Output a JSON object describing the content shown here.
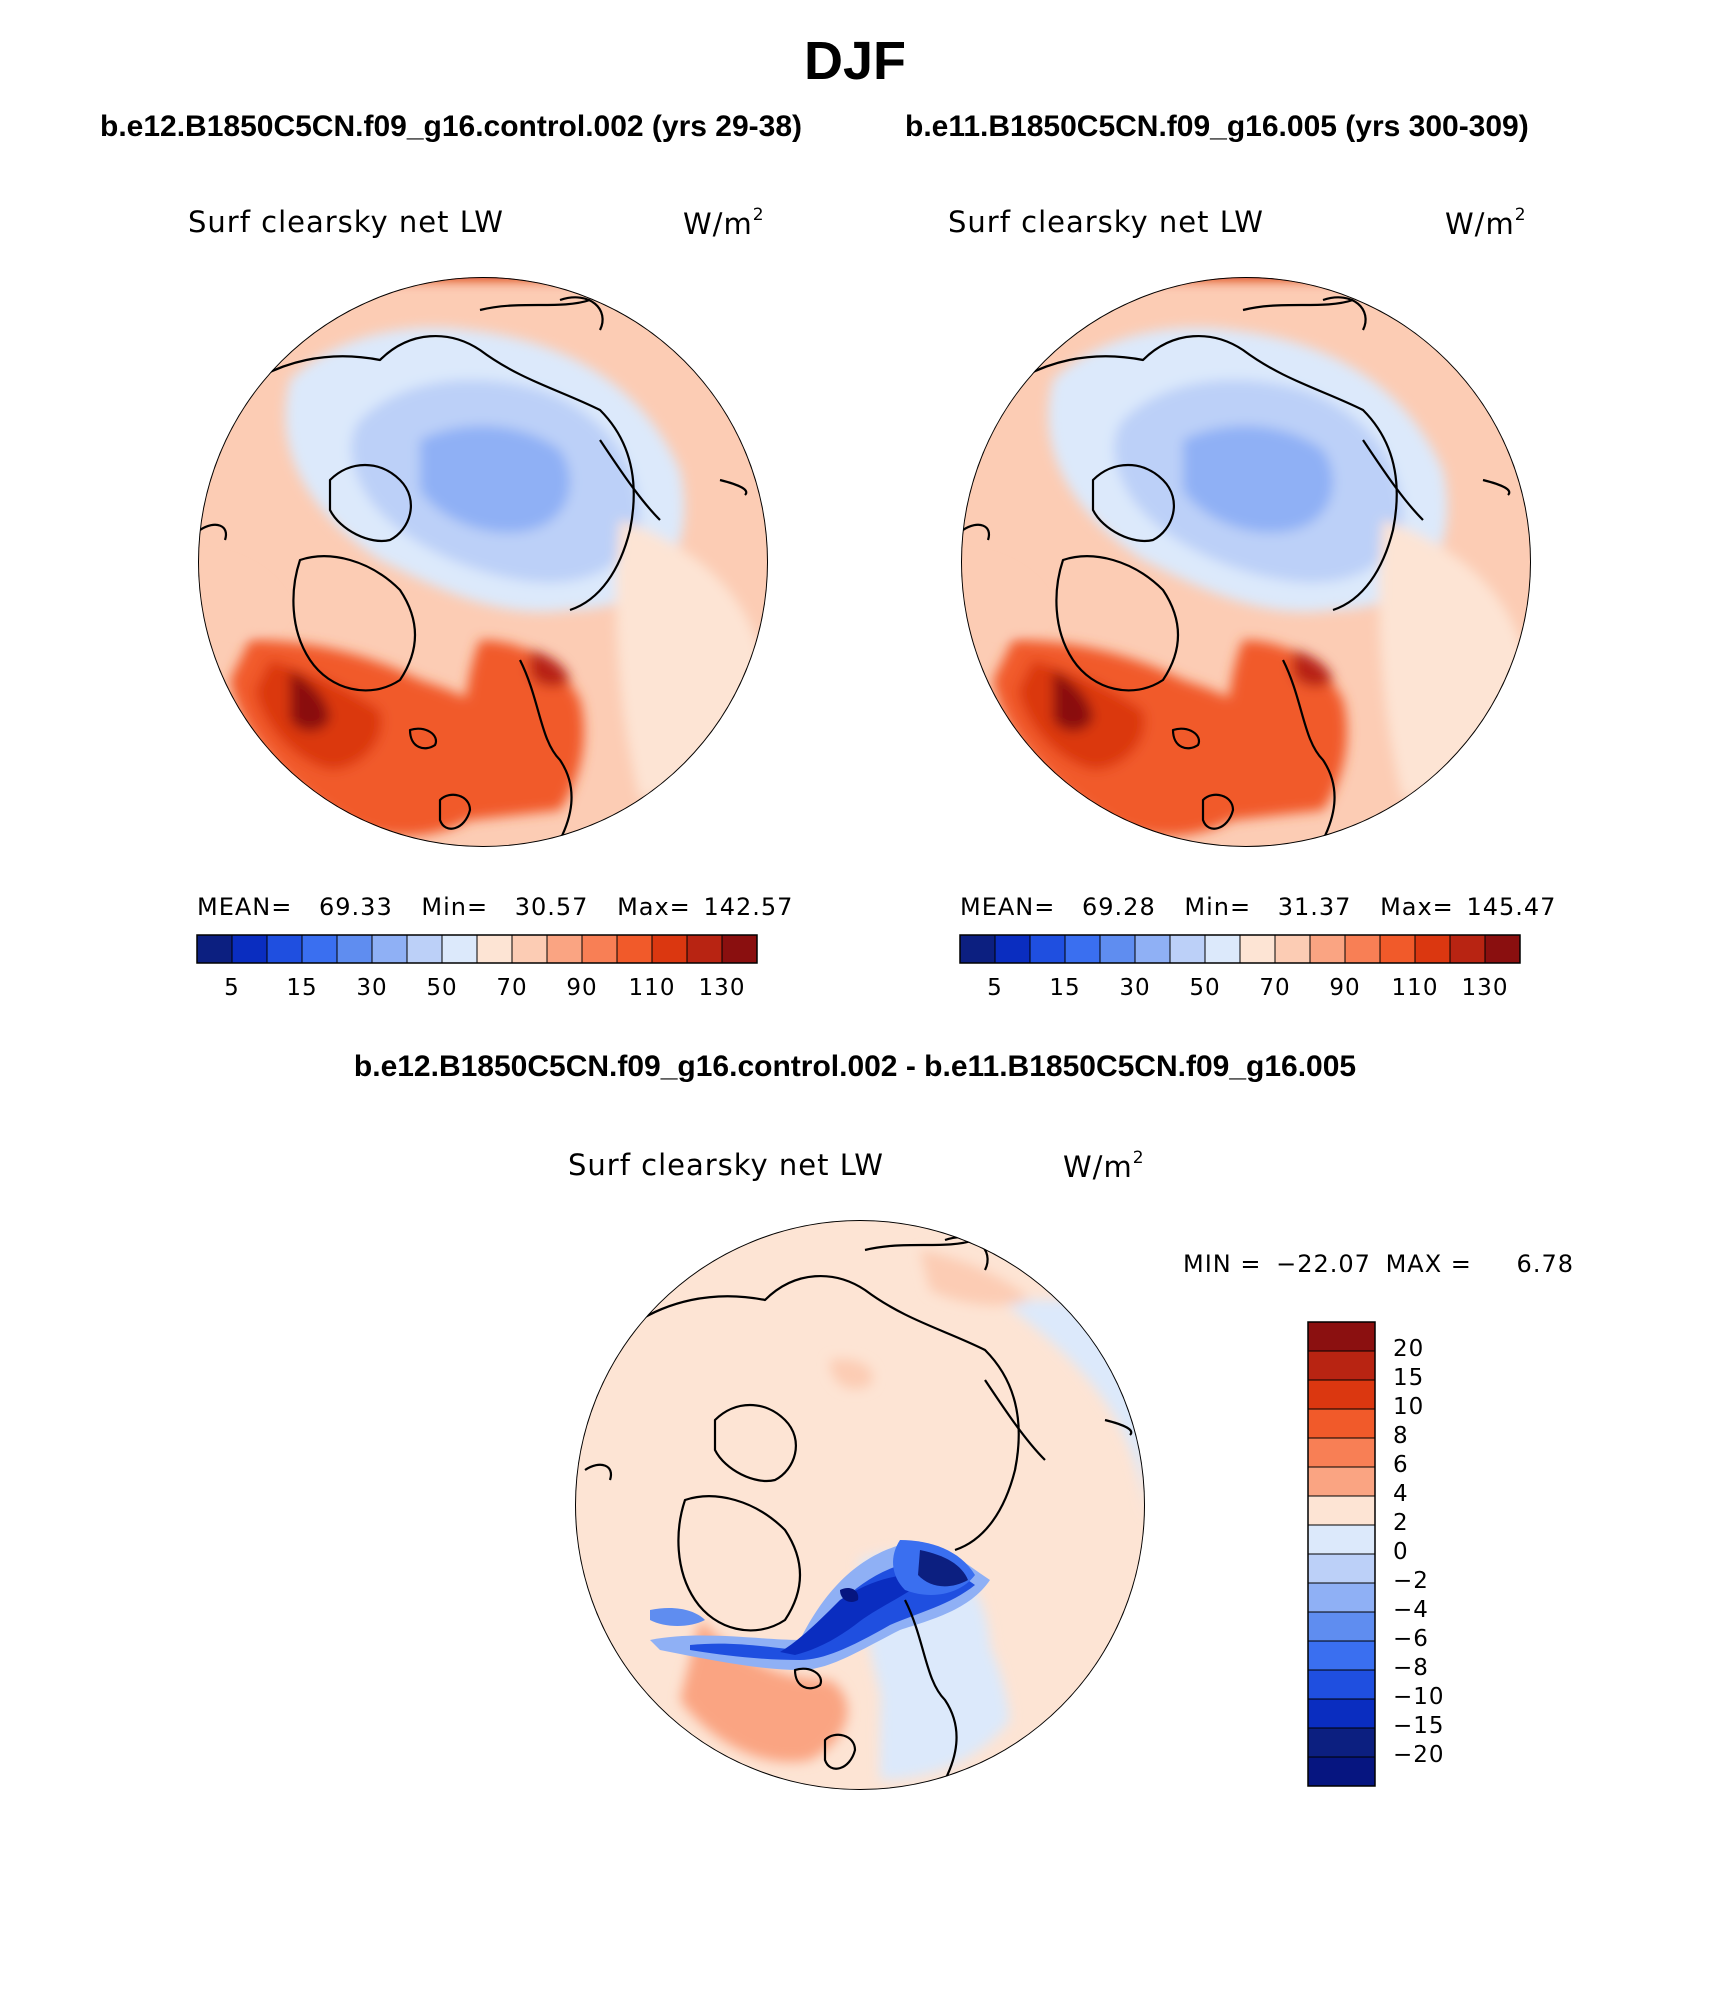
{
  "figure": {
    "season_title": "DJF",
    "left_case_title": "b.e12.B1850C5CN.f09_g16.control.002 (yrs 29-38)",
    "right_case_title": "b.e11.B1850C5CN.f09_g16.005 (yrs 300-309)",
    "diff_title": "b.e12.B1850C5CN.f09_g16.control.002 - b.e11.B1850C5CN.f09_g16.005"
  },
  "panels": {
    "left": {
      "variable": "Surf clearsky net LW",
      "units_base": "W/m",
      "units_exp": "2",
      "mean_label": "MEAN=",
      "mean": "69.33",
      "min_label": "Min=",
      "min": "30.57",
      "max_label": "Max=",
      "max": "142.57"
    },
    "right": {
      "variable": "Surf clearsky net LW",
      "units_base": "W/m",
      "units_exp": "2",
      "mean_label": "MEAN=",
      "mean": "69.28",
      "min_label": "Min=",
      "min": "31.37",
      "max_label": "Max=",
      "max": "145.47"
    },
    "diff": {
      "variable": "Surf clearsky net LW",
      "units_base": "W/m",
      "units_exp": "2",
      "min_label": "MIN =",
      "min": "−22.07",
      "max_label": "MAX =",
      "max": "6.78"
    }
  },
  "colorbars": {
    "absolute": {
      "colors": [
        "#0c1f80",
        "#0a2dc0",
        "#1f4fe0",
        "#3a6ff0",
        "#5f8df0",
        "#8fb0f5",
        "#bcd0f8",
        "#dce9fb",
        "#fde4d4",
        "#fcccb4",
        "#faa482",
        "#f87f55",
        "#f15a2a",
        "#db3710",
        "#b82412",
        "#8a0f0f"
      ],
      "labels": [
        "5",
        "15",
        "30",
        "50",
        "70",
        "90",
        "110",
        "130"
      ]
    },
    "difference": {
      "colors": [
        "#8b1010",
        "#b82412",
        "#db3710",
        "#f15a2a",
        "#f87f55",
        "#faa482",
        "#fde4d4",
        "#dce9fb",
        "#bcd0f8",
        "#8fb0f5",
        "#5f8df0",
        "#3a6ff0",
        "#1f4fe0",
        "#0a2dc0",
        "#0c1f80",
        "#061580"
      ],
      "labels": [
        "20",
        "15",
        "10",
        "8",
        "6",
        "4",
        "2",
        "0",
        "−2",
        "−4",
        "−6",
        "−8",
        "−10",
        "−15",
        "−20"
      ]
    }
  }
}
